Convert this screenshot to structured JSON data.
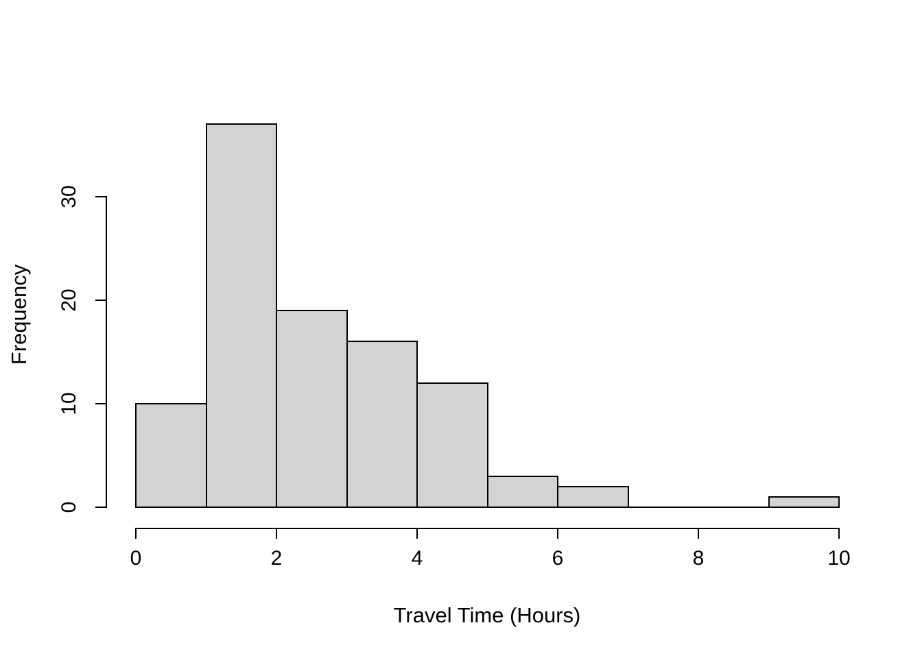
{
  "figure": {
    "background": "#ffffff"
  },
  "chart_data": {
    "type": "bar",
    "subtype": "histogram",
    "title": "",
    "xlabel": "Travel Time (Hours)",
    "ylabel": "Frequency",
    "bins": [
      {
        "x0": 0,
        "x1": 1,
        "count": 10
      },
      {
        "x0": 1,
        "x1": 2,
        "count": 37
      },
      {
        "x0": 2,
        "x1": 3,
        "count": 19
      },
      {
        "x0": 3,
        "x1": 4,
        "count": 16
      },
      {
        "x0": 4,
        "x1": 5,
        "count": 12
      },
      {
        "x0": 5,
        "x1": 6,
        "count": 3
      },
      {
        "x0": 6,
        "x1": 7,
        "count": 2
      },
      {
        "x0": 7,
        "x1": 8,
        "count": 0
      },
      {
        "x0": 8,
        "x1": 9,
        "count": 0
      },
      {
        "x0": 9,
        "x1": 10,
        "count": 1
      }
    ],
    "x_ticks": [
      0,
      2,
      4,
      6,
      8,
      10
    ],
    "y_ticks": [
      0,
      10,
      20,
      30
    ],
    "xlim": [
      0,
      10
    ],
    "ylim_ticks": [
      0,
      30
    ],
    "grid": false,
    "legend": null,
    "bar_fill": "#d3d3d3",
    "bar_border": "#000000",
    "axis_color": "#000000",
    "text_color": "#000000"
  }
}
